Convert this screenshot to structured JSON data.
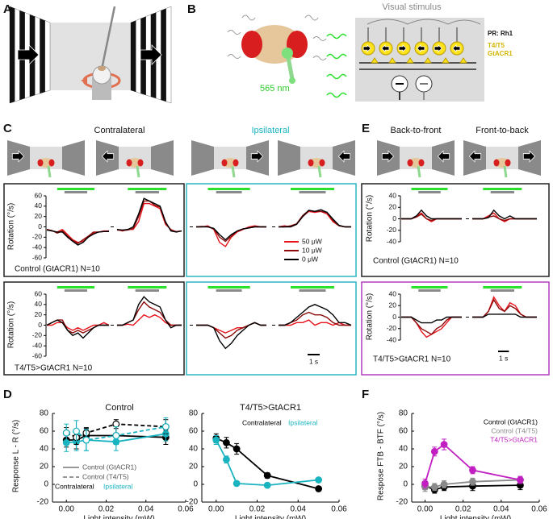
{
  "panel_labels": [
    "A",
    "B",
    "C",
    "D",
    "E",
    "F"
  ],
  "illustration": {
    "visual_stimulus": "Visual stimulus",
    "wavelength": "565 nm",
    "pr": "PR: Rh1",
    "t4t5": "T4/T5",
    "gtacr1": "GtACR1"
  },
  "panel_headers": {
    "C": [
      "Contralateral",
      "Ipsilateral"
    ],
    "E": [
      "Back-to-front",
      "Front-to-back"
    ]
  },
  "trace_legend": {
    "names": [
      "50 μW",
      "10 μW",
      "0 μW"
    ],
    "colors": [
      "#e8141b",
      "#8b0a0a",
      "#000000"
    ]
  },
  "chart_data": [
    {
      "type": "trace",
      "ylabel": "Rotation (°/s)",
      "ylim": [
        -60,
        60
      ],
      "yticks": [
        -60,
        -40,
        -20,
        0,
        20,
        40,
        60
      ],
      "xlim": [
        0,
        6
      ],
      "x": [
        0,
        0.5,
        1,
        1.5,
        2,
        2.5,
        3,
        3.5,
        4,
        4.5,
        5,
        5.5,
        6
      ],
      "annotation": "Control (GtACR1) N=10",
      "panels": [
        [
          [
            -5,
            -8,
            -10,
            -5,
            -15,
            -25,
            -30,
            -28,
            -20,
            -12,
            -10,
            -8,
            -8
          ],
          [
            -5,
            -7,
            -12,
            -8,
            -18,
            -27,
            -32,
            -25,
            -18,
            -10,
            -10,
            -9,
            -8
          ],
          [
            -6,
            -8,
            -10,
            -10,
            -20,
            -28,
            -35,
            -30,
            -20,
            -14,
            -10,
            -9,
            -9
          ]
        ],
        [
          [
            -5,
            -8,
            -5,
            -5,
            10,
            45,
            45,
            40,
            35,
            5,
            -5,
            -10,
            -8
          ],
          [
            -6,
            -7,
            -6,
            -3,
            20,
            50,
            50,
            42,
            38,
            8,
            -6,
            -9,
            -8
          ],
          [
            -5,
            -6,
            -5,
            0,
            25,
            55,
            50,
            45,
            40,
            10,
            -8,
            -10,
            -8
          ]
        ],
        [
          [
            0,
            0,
            2,
            -5,
            -30,
            -38,
            -20,
            -10,
            -5,
            0,
            2,
            0,
            0
          ],
          [
            0,
            1,
            0,
            -4,
            -20,
            -28,
            -18,
            -8,
            -4,
            -2,
            0,
            0,
            0
          ],
          [
            0,
            0,
            0,
            -3,
            -15,
            -25,
            -15,
            -8,
            -4,
            -2,
            0,
            0,
            0
          ]
        ],
        [
          [
            0,
            2,
            0,
            5,
            20,
            30,
            28,
            30,
            25,
            10,
            2,
            0,
            0
          ],
          [
            0,
            0,
            2,
            6,
            22,
            32,
            30,
            30,
            28,
            12,
            2,
            0,
            0
          ],
          [
            0,
            0,
            0,
            5,
            20,
            32,
            30,
            33,
            28,
            15,
            3,
            0,
            0
          ]
        ]
      ]
    },
    {
      "type": "trace",
      "ylabel": "Rotation (°/s)",
      "ylim": [
        -60,
        60
      ],
      "yticks": [
        -60,
        -40,
        -20,
        0,
        20,
        40,
        60
      ],
      "xlim": [
        0,
        6
      ],
      "x": [
        0,
        0.5,
        1,
        1.5,
        2,
        2.5,
        3,
        3.5,
        4,
        4.5,
        5,
        5.5,
        6
      ],
      "annotation": "T4/T5>GtACR1 N=10",
      "scale_bar": {
        "value": 1,
        "label": "1 s"
      },
      "panels": [
        [
          [
            0,
            0,
            5,
            5,
            -5,
            -10,
            -5,
            -10,
            -5,
            0,
            0,
            5,
            0
          ],
          [
            0,
            5,
            10,
            10,
            -10,
            -15,
            -10,
            -15,
            -10,
            -5,
            0,
            0,
            0
          ],
          [
            0,
            5,
            10,
            5,
            -10,
            -20,
            -15,
            -25,
            -15,
            -5,
            0,
            0,
            0
          ]
        ],
        [
          [
            0,
            0,
            2,
            0,
            10,
            20,
            15,
            20,
            15,
            5,
            0,
            0,
            0
          ],
          [
            0,
            0,
            5,
            10,
            30,
            45,
            35,
            30,
            25,
            10,
            0,
            0,
            0
          ],
          [
            0,
            0,
            5,
            10,
            40,
            55,
            45,
            40,
            35,
            10,
            -5,
            0,
            0
          ]
        ],
        [
          [
            0,
            0,
            0,
            -5,
            -10,
            -15,
            -10,
            -5,
            -5,
            0,
            5,
            0,
            0
          ],
          [
            0,
            0,
            0,
            -5,
            -15,
            -25,
            -20,
            -10,
            -5,
            0,
            5,
            0,
            0
          ],
          [
            0,
            0,
            0,
            -5,
            -30,
            -45,
            -35,
            -20,
            -10,
            0,
            5,
            0,
            0
          ]
        ],
        [
          [
            0,
            0,
            0,
            5,
            5,
            10,
            0,
            5,
            5,
            0,
            5,
            0,
            0
          ],
          [
            0,
            0,
            5,
            10,
            20,
            25,
            20,
            20,
            15,
            5,
            0,
            0,
            0
          ],
          [
            0,
            0,
            5,
            15,
            25,
            35,
            40,
            35,
            30,
            20,
            5,
            5,
            0
          ]
        ]
      ]
    },
    {
      "type": "trace",
      "ylabel": "Rotation (°/s)",
      "ylim": [
        -40,
        40
      ],
      "yticks": [
        -40,
        -20,
        0,
        20,
        40
      ],
      "xlim": [
        0,
        6
      ],
      "x": [
        0,
        0.5,
        1,
        1.5,
        2,
        2.5,
        3,
        3.5,
        4,
        4.5,
        5,
        5.5,
        6
      ],
      "annotation": "Control (GtACR1) N=10",
      "panels": [
        [
          [
            0,
            0,
            0,
            5,
            10,
            0,
            -5,
            0,
            0,
            0,
            0,
            0,
            0
          ],
          [
            0,
            0,
            0,
            3,
            8,
            0,
            -3,
            0,
            0,
            0,
            0,
            0,
            0
          ],
          [
            0,
            0,
            0,
            5,
            15,
            5,
            0,
            0,
            0,
            0,
            0,
            0,
            0
          ]
        ],
        [
          [
            0,
            0,
            0,
            5,
            10,
            0,
            -5,
            0,
            0,
            0,
            0,
            0,
            0
          ],
          [
            0,
            0,
            0,
            3,
            5,
            0,
            -3,
            0,
            0,
            0,
            0,
            0,
            0
          ],
          [
            0,
            0,
            0,
            2,
            15,
            5,
            0,
            5,
            0,
            0,
            0,
            0,
            0
          ]
        ]
      ]
    },
    {
      "type": "trace",
      "ylabel": "Rotation (°/s)",
      "ylim": [
        -40,
        40
      ],
      "yticks": [
        -40,
        -20,
        0,
        20,
        40
      ],
      "xlim": [
        0,
        6
      ],
      "x": [
        0,
        0.5,
        1,
        1.5,
        2,
        2.5,
        3,
        3.5,
        4,
        4.5,
        5,
        5.5,
        6
      ],
      "annotation": "T4/T5>GtACR1 N=10",
      "scale_bar": {
        "value": 1,
        "label": "1 s"
      },
      "panels": [
        [
          [
            0,
            0,
            0,
            -10,
            -25,
            -35,
            -30,
            -25,
            -20,
            -10,
            0,
            0,
            0
          ],
          [
            0,
            0,
            0,
            -10,
            -20,
            -25,
            -30,
            -20,
            -15,
            -5,
            0,
            0,
            0
          ],
          [
            0,
            0,
            0,
            -5,
            -10,
            -10,
            -10,
            -5,
            -5,
            0,
            0,
            0,
            0
          ]
        ],
        [
          [
            0,
            0,
            0,
            10,
            35,
            20,
            10,
            25,
            20,
            5,
            0,
            0,
            0
          ],
          [
            0,
            0,
            0,
            10,
            30,
            15,
            10,
            20,
            15,
            5,
            0,
            0,
            0
          ],
          [
            0,
            0,
            0,
            5,
            5,
            5,
            5,
            5,
            5,
            0,
            0,
            0,
            0
          ]
        ]
      ]
    },
    {
      "type": "errorline",
      "title": "Control",
      "xlabel": "Light intensity (mW)",
      "ylabel": "Response L - R (°/s)",
      "xlim": [
        -0.007,
        0.06
      ],
      "ylim": [
        -20,
        80
      ],
      "xticks": [
        {
          "value": 0,
          "label": "0.00"
        },
        0.02,
        0.04,
        0.06
      ],
      "yticks": [
        -20,
        0,
        20,
        40,
        60,
        80
      ],
      "legend_styles": [
        {
          "label": "Control (GtACR1)",
          "dash": false
        },
        {
          "label": "Control (T4/T5)",
          "dash": true
        }
      ],
      "legend_colors": [
        {
          "label": "Contralateral",
          "color": "#000000"
        },
        {
          "label": "Ipsilateral",
          "color": "#1ab3c0"
        }
      ],
      "series": [
        {
          "x": [
            0,
            0.005,
            0.01,
            0.025,
            0.05
          ],
          "values": [
            50,
            50,
            55,
            55,
            53
          ],
          "errors": [
            8,
            10,
            8,
            10,
            8
          ],
          "color": "#000000",
          "dash": false,
          "filled": true
        },
        {
          "x": [
            0,
            0.005,
            0.01,
            0.025,
            0.05
          ],
          "values": [
            47,
            48,
            50,
            48,
            57
          ],
          "errors": [
            10,
            10,
            12,
            10,
            8
          ],
          "color": "#1ab3c0",
          "dash": false,
          "filled": true
        },
        {
          "x": [
            0,
            0.005,
            0.01,
            0.025,
            0.05
          ],
          "values": [
            58,
            53,
            58,
            68,
            65
          ],
          "errors": [
            6,
            8,
            6,
            5,
            8
          ],
          "color": "#000000",
          "dash": true,
          "filled": false
        },
        {
          "x": [
            0,
            0.005,
            0.01,
            0.025,
            0.05
          ],
          "values": [
            58,
            60,
            50,
            55,
            65
          ],
          "errors": [
            10,
            12,
            12,
            10,
            10
          ],
          "color": "#1ab3c0",
          "dash": true,
          "filled": false
        }
      ]
    },
    {
      "type": "errorline",
      "title": "T4/T5>GtACR1",
      "xlabel": "Light intensity (mW)",
      "xlim": [
        -0.007,
        0.06
      ],
      "ylim": [
        -20,
        80
      ],
      "xticks": [
        {
          "value": 0,
          "label": "0.00"
        },
        0.02,
        0.04,
        0.06
      ],
      "yticks": [
        -20,
        0,
        20,
        40,
        60,
        80
      ],
      "legend_colors": [
        {
          "label": "Contralateral",
          "color": "#000000"
        },
        {
          "label": "Ipsilateral",
          "color": "#1ab3c0"
        }
      ],
      "series": [
        {
          "x": [
            0,
            0.005,
            0.01,
            0.025,
            0.05
          ],
          "values": [
            52,
            47,
            40,
            10,
            -5
          ],
          "errors": [
            5,
            6,
            6,
            3,
            2
          ],
          "color": "#000000",
          "dash": false,
          "filled": true
        },
        {
          "x": [
            0,
            0.005,
            0.01,
            0.025,
            0.05
          ],
          "values": [
            50,
            28,
            1,
            -1,
            5
          ],
          "errors": [
            5,
            4,
            2,
            2,
            2
          ],
          "color": "#1ab3c0",
          "dash": false,
          "filled": true
        }
      ]
    },
    {
      "type": "errorline",
      "xlabel": "Light intensity (mW)",
      "ylabel": "Respose FTB - BTF (°/s)",
      "xlim": [
        -0.007,
        0.06
      ],
      "ylim": [
        -20,
        80
      ],
      "xticks": [
        {
          "value": 0,
          "label": "0.00"
        },
        0.02,
        0.04,
        0.06
      ],
      "yticks": [
        -20,
        0,
        20,
        40,
        60,
        80
      ],
      "legend_colors": [
        {
          "label": "Control (GtACR1)",
          "color": "#000000"
        },
        {
          "label": "Control (T4/T5)",
          "color": "#8a8a8a"
        },
        {
          "label": "T4/T5>GtACR1",
          "color": "#c21fc2"
        }
      ],
      "series": [
        {
          "x": [
            0,
            0.005,
            0.01,
            0.025,
            0.05
          ],
          "values": [
            -2,
            -6,
            -3,
            -2,
            -1
          ],
          "errors": [
            4,
            4,
            4,
            5,
            5
          ],
          "color": "#000000",
          "dash": false,
          "filled": true
        },
        {
          "x": [
            0,
            0.005,
            0.01,
            0.025,
            0.05
          ],
          "values": [
            -3,
            -3,
            0,
            3,
            5
          ],
          "errors": [
            5,
            4,
            4,
            4,
            4
          ],
          "color": "#8a8a8a",
          "dash": false,
          "filled": true
        },
        {
          "x": [
            0,
            0.005,
            0.01,
            0.025,
            0.05
          ],
          "values": [
            1,
            37,
            45,
            16,
            5
          ],
          "errors": [
            5,
            5,
            6,
            4,
            4
          ],
          "color": "#c21fc2",
          "dash": false,
          "filled": true
        }
      ]
    }
  ]
}
